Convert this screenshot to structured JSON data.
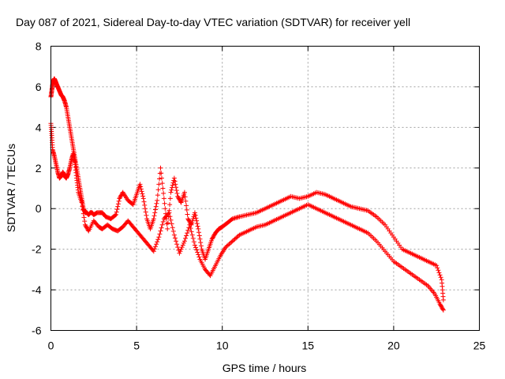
{
  "chart_data": {
    "type": "scatter",
    "title": "Day 087 of 2021, Sidereal Day-to-day VTEC variation (SDTVAR) for receiver yell",
    "xlabel": "GPS time / hours",
    "ylabel": "SDTVAR / TECUs",
    "xlim": [
      0,
      25
    ],
    "ylim": [
      -6,
      8
    ],
    "xticks": [
      "0",
      "5",
      "10",
      "15",
      "20",
      "25"
    ],
    "yticks": [
      "-6",
      "-4",
      "-2",
      "0",
      "2",
      "4",
      "6",
      "8"
    ],
    "marker": "+",
    "marker_color": "#ff0000",
    "grid": true,
    "series": [
      {
        "name": "SDTVAR",
        "x": [
          0.0,
          0.05,
          0.1,
          0.15,
          0.2,
          0.25,
          0.3,
          0.4,
          0.5,
          0.6,
          0.7,
          0.8,
          0.9,
          1.0,
          1.1,
          1.2,
          1.3,
          1.4,
          1.5,
          1.6,
          1.7,
          1.8,
          1.9,
          2.0,
          2.1,
          2.2,
          2.3,
          2.4,
          2.5,
          2.7,
          3.0,
          3.2,
          3.5,
          3.8,
          4.0,
          4.2,
          4.5,
          4.8,
          5.0,
          5.2,
          5.4,
          5.6,
          5.8,
          6.0,
          6.2,
          6.4,
          6.6,
          6.8,
          7.0,
          7.2,
          7.4,
          7.6,
          7.8,
          8.0,
          8.2,
          8.4,
          8.6,
          8.8,
          9.0,
          9.2,
          9.4,
          9.6,
          9.8,
          10.0,
          10.3,
          10.6,
          11.0,
          11.5,
          12.0,
          12.5,
          13.0,
          13.5,
          14.0,
          14.5,
          15.0,
          15.5,
          16.0,
          16.5,
          17.0,
          17.5,
          18.0,
          18.5,
          19.0,
          19.5,
          20.0,
          20.5,
          21.0,
          21.5,
          22.0,
          22.5,
          22.8,
          22.9
        ],
        "y": [
          5.5,
          5.8,
          6.1,
          6.3,
          6.4,
          6.3,
          6.2,
          6.0,
          5.8,
          5.6,
          5.5,
          5.3,
          5.0,
          4.5,
          4.0,
          3.5,
          3.0,
          2.5,
          2.0,
          1.5,
          1.0,
          0.5,
          0.0,
          -0.2,
          -0.2,
          -0.3,
          -0.2,
          -0.2,
          -0.3,
          -0.2,
          -0.2,
          -0.4,
          -0.5,
          -0.3,
          0.5,
          0.8,
          0.4,
          0.2,
          0.7,
          1.2,
          0.5,
          -0.5,
          -1.0,
          -0.5,
          0.4,
          2.0,
          0.5,
          -1.0,
          0.8,
          1.5,
          0.6,
          0.3,
          0.8,
          -0.5,
          -0.8,
          -0.2,
          -1.0,
          -2.0,
          -2.5,
          -2.0,
          -1.5,
          -1.2,
          -1.0,
          -0.9,
          -0.7,
          -0.5,
          -0.4,
          -0.3,
          -0.2,
          0.0,
          0.2,
          0.4,
          0.6,
          0.5,
          0.6,
          0.8,
          0.7,
          0.5,
          0.3,
          0.1,
          0.0,
          -0.1,
          -0.4,
          -0.8,
          -1.4,
          -2.0,
          -2.2,
          -2.4,
          -2.6,
          -2.8,
          -3.5,
          -4.5
        ],
        "x2": [
          0.0,
          0.05,
          0.1,
          0.2,
          0.3,
          0.4,
          0.5,
          0.6,
          0.7,
          0.8,
          0.9,
          1.0,
          1.1,
          1.2,
          1.3,
          1.4,
          1.5,
          1.6,
          1.8,
          2.0,
          2.2,
          2.5,
          2.8,
          3.0,
          3.3,
          3.6,
          3.9,
          4.2,
          4.5,
          4.8,
          5.1,
          5.4,
          5.7,
          6.0,
          6.3,
          6.6,
          6.9,
          7.2,
          7.5,
          7.8,
          8.1,
          8.4,
          8.7,
          9.0,
          9.3,
          9.6,
          9.9,
          10.2,
          10.6,
          11.0,
          11.5,
          12.0,
          12.5,
          13.0,
          13.5,
          14.0,
          14.5,
          15.0,
          15.5,
          16.0,
          16.5,
          17.0,
          17.5,
          18.0,
          18.5,
          19.0,
          19.5,
          20.0,
          20.5,
          21.0,
          21.5,
          22.0,
          22.4,
          22.7,
          22.9
        ],
        "y2": [
          4.2,
          3.6,
          2.9,
          2.6,
          2.2,
          1.8,
          1.5,
          1.6,
          1.8,
          1.6,
          1.5,
          1.7,
          2.0,
          2.4,
          2.7,
          2.3,
          1.5,
          0.8,
          0.3,
          -0.8,
          -1.1,
          -0.6,
          -0.9,
          -1.0,
          -0.8,
          -1.0,
          -1.1,
          -0.9,
          -0.6,
          -0.9,
          -1.2,
          -1.5,
          -1.8,
          -2.1,
          -1.4,
          -0.5,
          -0.2,
          -1.3,
          -2.2,
          -1.6,
          -0.8,
          -1.8,
          -2.5,
          -3.0,
          -3.3,
          -2.8,
          -2.3,
          -1.9,
          -1.6,
          -1.3,
          -1.1,
          -0.9,
          -0.8,
          -0.6,
          -0.4,
          -0.2,
          0.0,
          0.2,
          0.0,
          -0.2,
          -0.4,
          -0.6,
          -0.8,
          -1.0,
          -1.2,
          -1.6,
          -2.1,
          -2.6,
          -2.9,
          -3.2,
          -3.5,
          -3.8,
          -4.2,
          -4.7,
          -5.0
        ]
      }
    ]
  }
}
